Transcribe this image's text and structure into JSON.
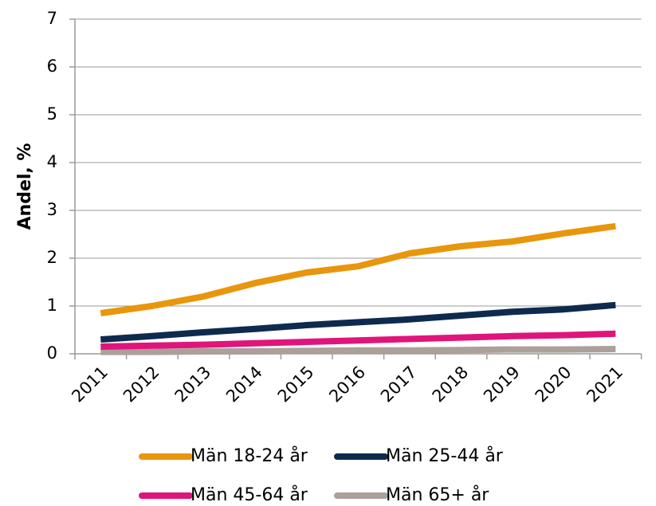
{
  "chart_data": {
    "type": "line",
    "y_label": "Andel, %",
    "categories": [
      "2011",
      "2012",
      "2013",
      "2014",
      "2015",
      "2016",
      "2017",
      "2018",
      "2019",
      "2020",
      "2021"
    ],
    "series": [
      {
        "name": "Män 18-24 år",
        "color": "#e8960c",
        "values": [
          0.85,
          1.0,
          1.2,
          1.48,
          1.7,
          1.83,
          2.1,
          2.25,
          2.35,
          2.52,
          2.67
        ]
      },
      {
        "name": "Män 25-44 år",
        "color": "#0e2a4e",
        "values": [
          0.3,
          0.37,
          0.45,
          0.52,
          0.6,
          0.66,
          0.72,
          0.8,
          0.88,
          0.93,
          1.02
        ]
      },
      {
        "name": "Män 45-64 år",
        "color": "#e0157b",
        "values": [
          0.15,
          0.17,
          0.19,
          0.22,
          0.25,
          0.28,
          0.31,
          0.34,
          0.37,
          0.39,
          0.42
        ]
      },
      {
        "name": "Män 65+ år",
        "color": "#aba09a",
        "values": [
          0.04,
          0.04,
          0.05,
          0.05,
          0.06,
          0.07,
          0.07,
          0.08,
          0.09,
          0.09,
          0.1
        ]
      }
    ],
    "ylim": [
      0,
      7
    ],
    "yticks": [
      0,
      1,
      2,
      3,
      4,
      5,
      6,
      7
    ],
    "grid": true,
    "legend": "bottom"
  }
}
